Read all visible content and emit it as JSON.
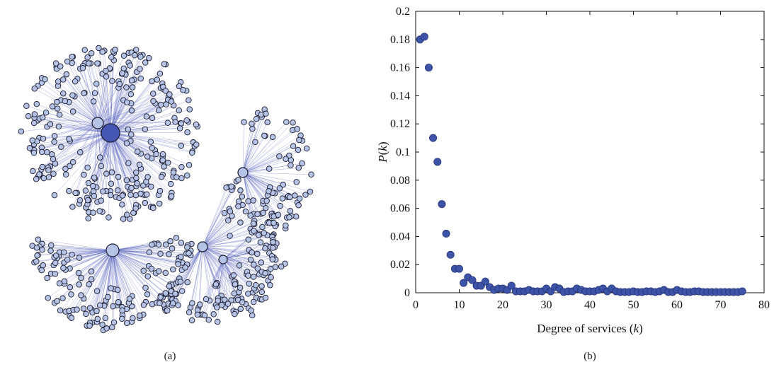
{
  "panels": {
    "network_label": "(a)",
    "chart_label": "(b)"
  },
  "network": {
    "node_color": "#b4c3e6",
    "edge_color": "#5c69c0",
    "hub_color": "#4656b4"
  },
  "chart_data": {
    "type": "scatter",
    "title": "",
    "xlabel_prefix": "Degree of services (",
    "xlabel_var": "k",
    "xlabel_suffix": ")",
    "ylabel_var_outer": "P",
    "ylabel_var_inner": "k",
    "xlim": [
      0,
      80
    ],
    "ylim": [
      0,
      0.2
    ],
    "xticks": [
      "0",
      "10",
      "20",
      "30",
      "40",
      "50",
      "60",
      "70",
      "80"
    ],
    "yticks": [
      "0",
      "0.02",
      "0.04",
      "0.06",
      "0.08",
      "0.1",
      "0.12",
      "0.14",
      "0.16",
      "0.18",
      "0.2"
    ],
    "grid": false,
    "marker_color": "#3d53a8",
    "series": [
      {
        "x": [
          1,
          2,
          3,
          4,
          5,
          6,
          7,
          8,
          9,
          10,
          11,
          12,
          13,
          14,
          15,
          16,
          17,
          18,
          19,
          20,
          21,
          22,
          23,
          24,
          25,
          26,
          27,
          28,
          29,
          30,
          31,
          32,
          33,
          34,
          35,
          36,
          37,
          38,
          39,
          40,
          41,
          42,
          43,
          44,
          45,
          46,
          47,
          48,
          49,
          50,
          51,
          52,
          53,
          54,
          55,
          56,
          57,
          58,
          59,
          60,
          61,
          62,
          63,
          64,
          65,
          66,
          67,
          68,
          69,
          70,
          71,
          72,
          73,
          74,
          75
        ],
        "y": [
          0.18,
          0.182,
          0.16,
          0.11,
          0.093,
          0.063,
          0.042,
          0.027,
          0.017,
          0.017,
          0.007,
          0.011,
          0.009,
          0.005,
          0.005,
          0.008,
          0.004,
          0.002,
          0.003,
          0.003,
          0.002,
          0.005,
          0.001,
          0.001,
          0.001,
          0.002,
          0.001,
          0.001,
          0.001,
          0.003,
          0.001,
          0.004,
          0.003,
          0.0005,
          0.001,
          0.001,
          0.003,
          0.002,
          0.001,
          0.001,
          0.001,
          0.002,
          0.003,
          0.001,
          0.003,
          0.001,
          0.0005,
          0.0005,
          0.0005,
          0.001,
          0.0005,
          0.0005,
          0.001,
          0.001,
          0.0005,
          0.001,
          0.002,
          0.0005,
          0.0005,
          0.002,
          0.001,
          0.0005,
          0.0005,
          0.001,
          0.001,
          0.0005,
          0.0005,
          0.0005,
          0.0005,
          0.0005,
          0.0005,
          0.0005,
          0.0005,
          0.0005,
          0.001
        ]
      }
    ]
  }
}
